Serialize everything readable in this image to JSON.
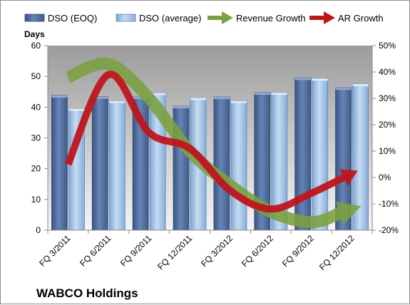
{
  "chart_data": {
    "type": "bar",
    "company": "WABCO Holdings",
    "left_axis_title": "Days",
    "categories": [
      "FQ 3/2011",
      "FQ 6/2011",
      "FQ 9/2011",
      "FQ 12/2011",
      "FQ 3/2012",
      "FQ 6/2012",
      "FQ 9/2012",
      "FQ 12/2012"
    ],
    "left_axis": {
      "min": 0,
      "max": 60,
      "ticks": [
        0,
        10,
        20,
        30,
        40,
        50,
        60
      ],
      "tick_labels": [
        "0",
        "10",
        "20",
        "30",
        "40",
        "50",
        "60"
      ]
    },
    "right_axis": {
      "min": -20,
      "max": 50,
      "ticks": [
        -20,
        -10,
        0,
        10,
        20,
        30,
        40,
        50
      ],
      "tick_labels": [
        "-20%",
        "-10%",
        "0%",
        "10%",
        "20%",
        "30%",
        "40%",
        "50%"
      ]
    },
    "grid": false,
    "legend_position": "top",
    "bar_series": [
      {
        "name": "DSO (EOQ)",
        "axis": "left",
        "color": "#4f6d9e",
        "values": [
          43.8,
          43.4,
          43.3,
          40.3,
          43.3,
          44.7,
          49.5,
          46.3
        ]
      },
      {
        "name": "DSO (average)",
        "axis": "left",
        "color": "#a9c8ea",
        "values": [
          39.5,
          42.0,
          44.6,
          43.0,
          42.0,
          44.7,
          49.3,
          47.5
        ]
      }
    ],
    "line_series": [
      {
        "name": "Revenue Growth",
        "axis": "right",
        "color": "#7aa03f",
        "values": [
          38,
          43,
          30,
          10,
          -3,
          -13,
          -17,
          -12
        ]
      },
      {
        "name": "AR Growth",
        "axis": "right",
        "color": "#c0141c",
        "values": [
          5,
          39,
          17,
          11,
          -5,
          -12,
          -6,
          1.5
        ]
      }
    ]
  }
}
